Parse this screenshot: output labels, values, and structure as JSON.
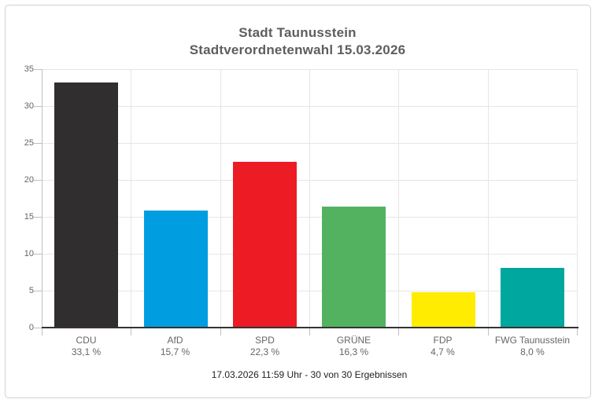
{
  "card": {
    "border_color": "#d2d2d2",
    "background": "#ffffff"
  },
  "chart_data": {
    "type": "bar",
    "title": "Stadt Taunusstein",
    "subtitle": "Stadtverordnetenwahl 15.03.2026",
    "categories": [
      "CDU",
      "AfD",
      "SPD",
      "GRÜNE",
      "FDP",
      "FWG Taunusstein"
    ],
    "values": [
      33.1,
      15.7,
      22.3,
      16.3,
      4.7,
      8.0
    ],
    "value_labels": [
      "33,1 %",
      "15,7 %",
      "22,3 %",
      "16,3 %",
      "4,7 %",
      "8,0 %"
    ],
    "bar_colors": [
      "#312e2f",
      "#009ee0",
      "#ed1c24",
      "#53b25f",
      "#ffec00",
      "#00a79e"
    ],
    "ylim": [
      0,
      35
    ],
    "yticks": [
      0,
      5,
      10,
      15,
      20,
      25,
      30,
      35
    ],
    "grid": true,
    "legend": "none",
    "xlabel": "",
    "ylabel": "",
    "footer": "17.03.2026 11:59 Uhr - 30 von 30 Ergebnissen",
    "colors": {
      "title_text": "#5e5e60",
      "axis_labels": "#666666",
      "gridline": "#e6e6e6",
      "axis_tick": "#c0c0c0",
      "x_axis_line": "#333333",
      "footer_text": "#222222"
    }
  }
}
